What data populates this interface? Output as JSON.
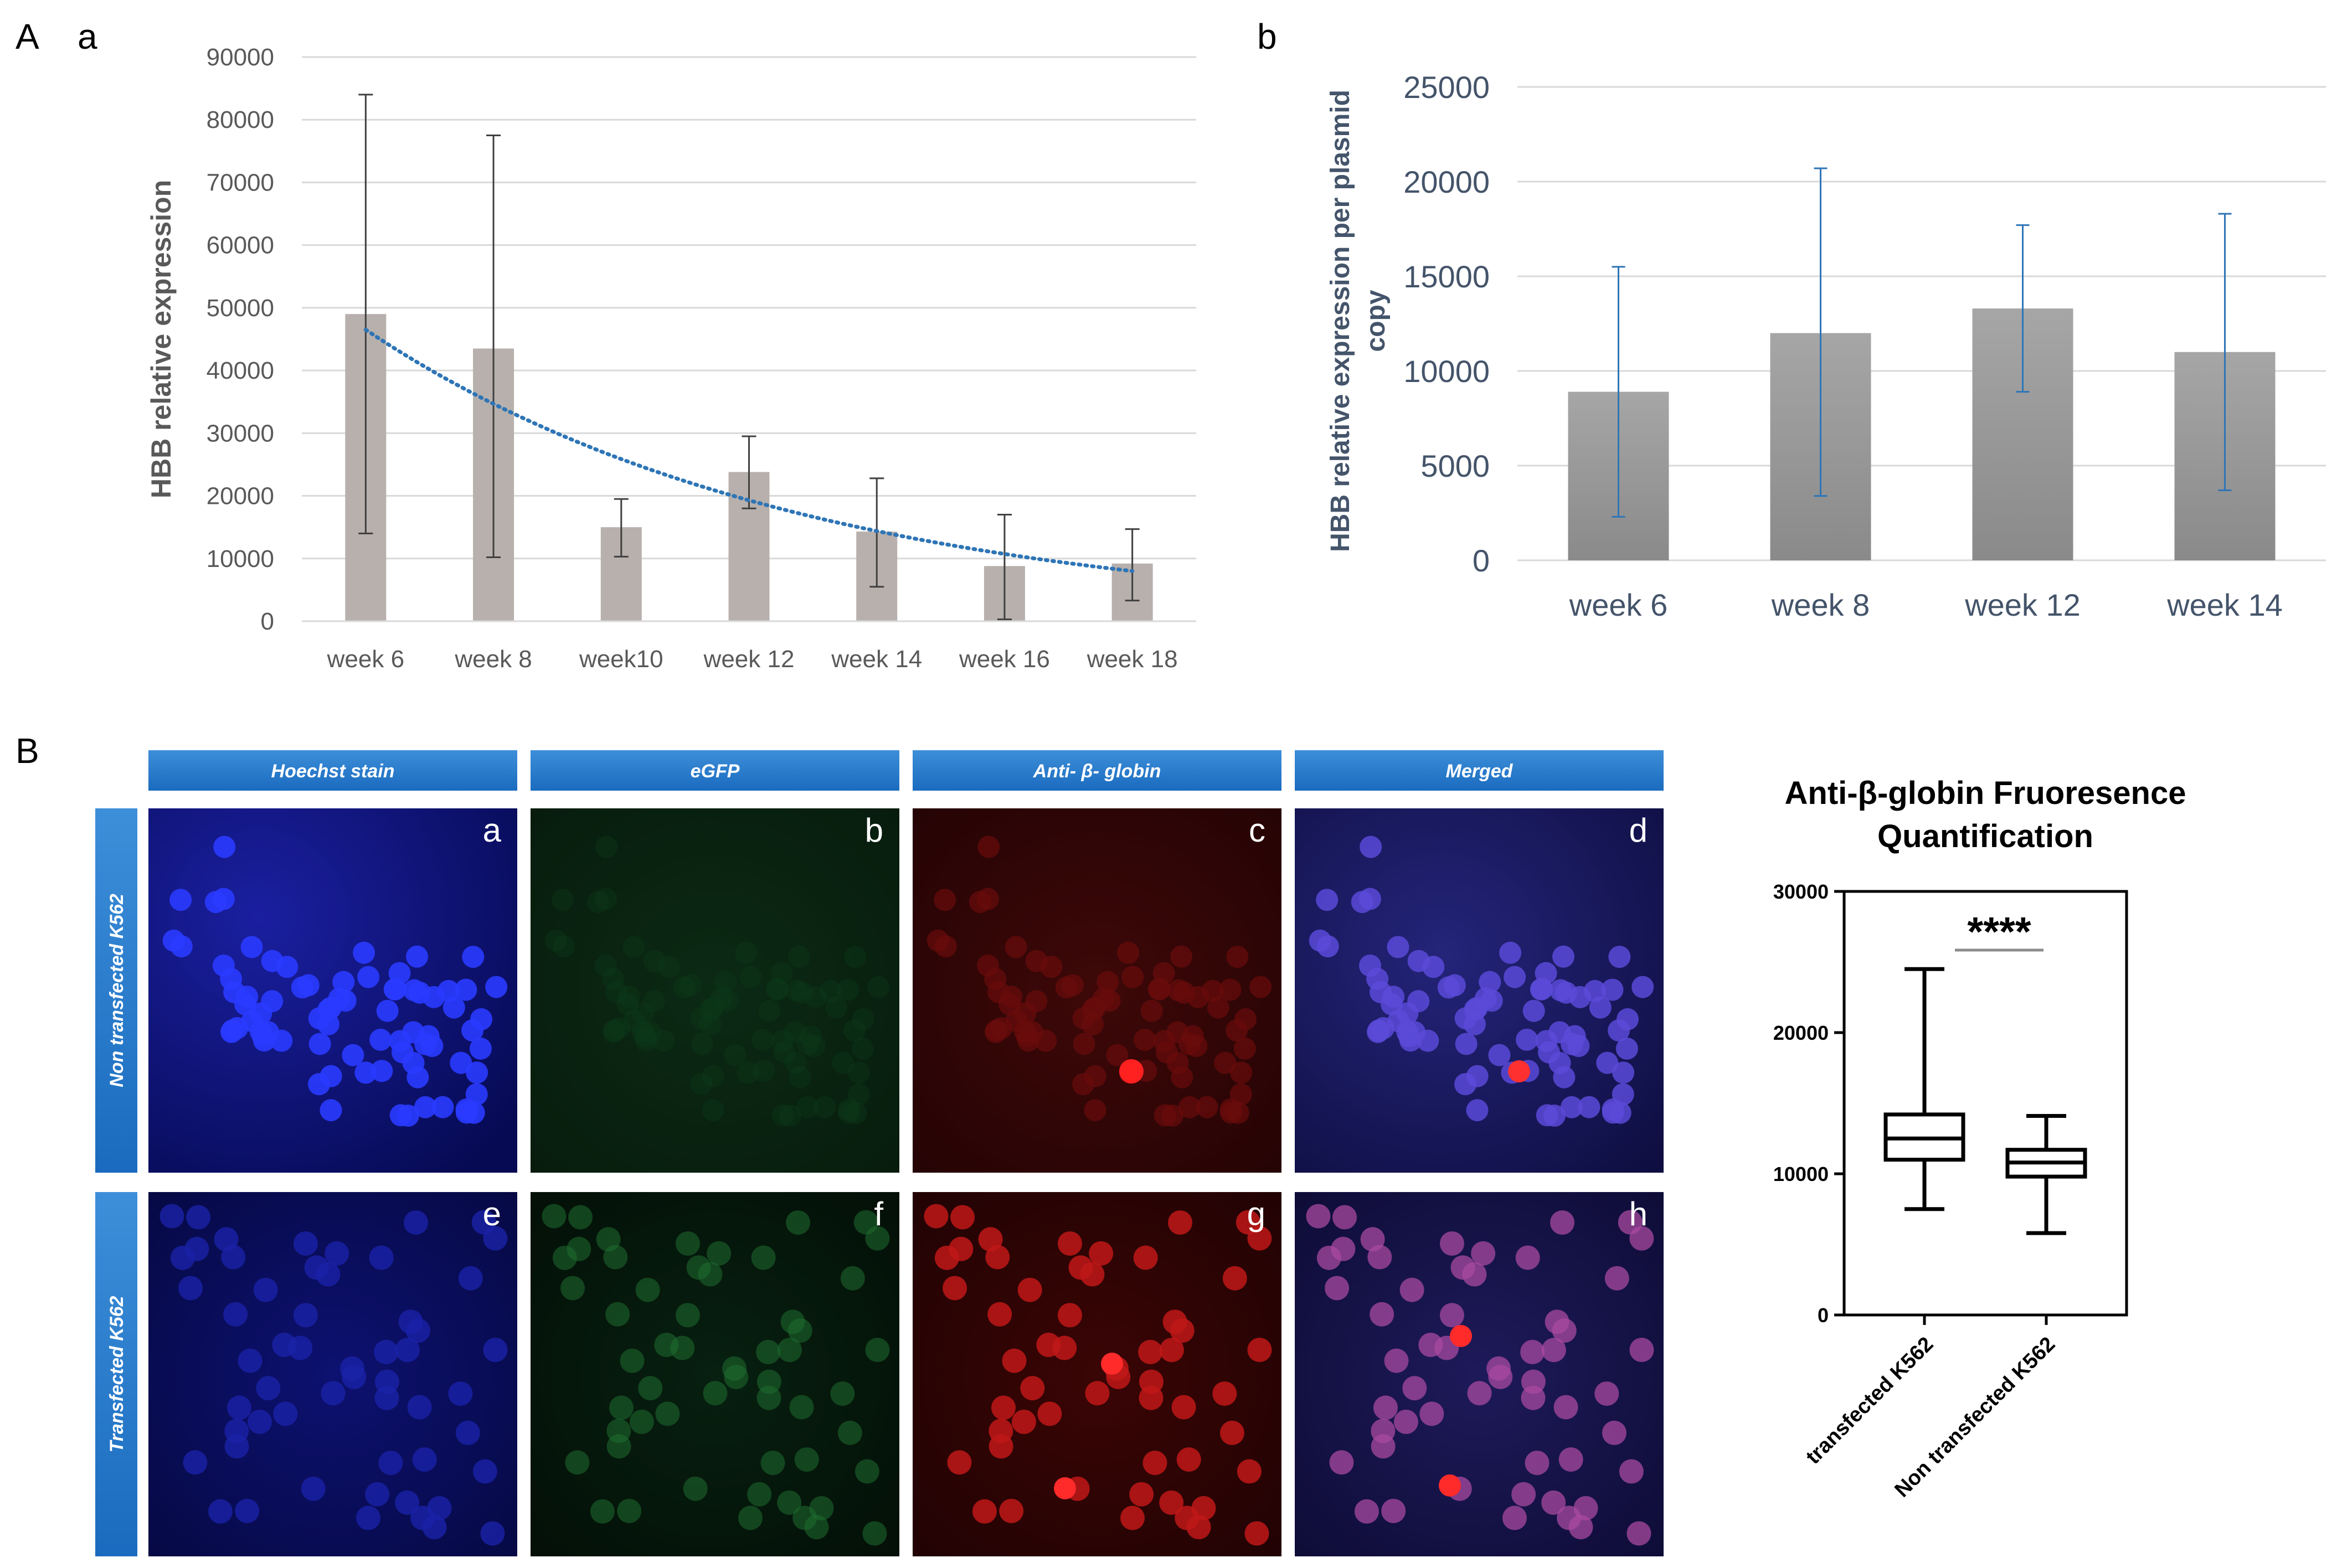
{
  "panel_labels": {
    "A": "A",
    "Aa": "a",
    "Ab": "b",
    "B": "B"
  },
  "chart_data": [
    {
      "id": "Aa",
      "type": "bar",
      "title": "",
      "xlabel": "",
      "ylabel": "HBB relative expression",
      "categories": [
        "week 6",
        "week 8",
        "week10",
        "week 12",
        "week 14",
        "week 16",
        "week 18"
      ],
      "values": [
        49000,
        43500,
        15000,
        23800,
        14300,
        8800,
        9200
      ],
      "error_low": [
        14000,
        10200,
        10300,
        18000,
        5500,
        300,
        3300
      ],
      "error_high": [
        84000,
        77500,
        19500,
        29500,
        22800,
        17000,
        14700
      ],
      "trendline": {
        "type": "exponential",
        "start": 46500,
        "end": 8000,
        "style": "dotted",
        "color": "#2e75b6"
      },
      "ylim": [
        0,
        90000
      ],
      "yticks": [
        "0",
        "10000",
        "20000",
        "30000",
        "40000",
        "50000",
        "60000",
        "70000",
        "80000",
        "90000"
      ],
      "grid": true,
      "bar_color": "#b7b0ad"
    },
    {
      "id": "Ab",
      "type": "bar",
      "title": "",
      "xlabel": "",
      "ylabel": [
        "HBB relative expression per plasmid",
        "copy"
      ],
      "categories": [
        "week 6",
        "week 8",
        "week 12",
        "week 14"
      ],
      "values": [
        8900,
        12000,
        13300,
        11000
      ],
      "error_low": [
        2300,
        3400,
        8900,
        3700
      ],
      "error_high": [
        15500,
        20700,
        17700,
        18300
      ],
      "ylim": [
        0,
        25000
      ],
      "yticks": [
        "0",
        "5000",
        "10000",
        "15000",
        "20000",
        "25000"
      ],
      "grid": true,
      "bar_color": "#9b9b9b",
      "error_color": "#2e75b6"
    },
    {
      "id": "B-box",
      "type": "box",
      "title": [
        "Anti-β-globin Fruoresence",
        "Quantification"
      ],
      "categories": [
        "transfected K562",
        "Non transfected K562"
      ],
      "boxes": [
        {
          "min": 7500,
          "q1": 11000,
          "median": 12500,
          "q3": 14200,
          "max": 24500
        },
        {
          "min": 5800,
          "q1": 9800,
          "median": 10800,
          "q3": 11700,
          "max": 14100
        }
      ],
      "ylim": [
        0,
        30000
      ],
      "yticks": [
        "0",
        "10000",
        "20000",
        "30000"
      ],
      "significance": "****"
    }
  ],
  "micrographs": {
    "column_headers": [
      "Hoechst stain",
      "eGFP",
      "Anti- β- globin",
      "Merged"
    ],
    "row_headers": [
      "Non transfected K562",
      "Transfected K562"
    ],
    "panel_letters": [
      "a",
      "b",
      "c",
      "d",
      "e",
      "f",
      "g",
      "h"
    ]
  }
}
